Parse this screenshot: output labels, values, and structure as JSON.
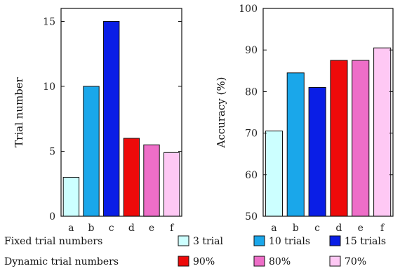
{
  "chart_data": [
    {
      "type": "bar",
      "categories": [
        "a",
        "b",
        "c",
        "d",
        "e",
        "f"
      ],
      "values": [
        3,
        10,
        15,
        6,
        5.5,
        4.9
      ],
      "colors": [
        "#ccffff",
        "#1aa7ea",
        "#0a1ee6",
        "#ee0a0a",
        "#ee6ec8",
        "#fec8f4"
      ],
      "title": "",
      "xlabel": "",
      "ylabel": "Trial number",
      "ylim": [
        0,
        16
      ],
      "yticks": [
        0,
        5,
        10,
        15
      ],
      "ytick_labels": [
        "0",
        "5",
        "10",
        "15"
      ],
      "grid": false
    },
    {
      "type": "bar",
      "categories": [
        "a",
        "b",
        "c",
        "d",
        "e",
        "f"
      ],
      "values": [
        70.5,
        84.5,
        81,
        87.5,
        87.5,
        90.5
      ],
      "colors": [
        "#ccffff",
        "#1aa7ea",
        "#0a1ee6",
        "#ee0a0a",
        "#ee6ec8",
        "#fec8f4"
      ],
      "title": "",
      "xlabel": "",
      "ylabel": "Accuracy (%)",
      "ylim": [
        50,
        100
      ],
      "yticks": [
        50,
        60,
        70,
        80,
        90,
        100
      ],
      "ytick_labels": [
        "50",
        "60",
        "70",
        "80",
        "90",
        "100"
      ],
      "grid": false
    }
  ],
  "legend": {
    "rows": [
      {
        "label": "Fixed trial numbers",
        "items": [
          {
            "label": "3 trial",
            "color": "#ccffff"
          },
          {
            "label": "10 trials",
            "color": "#1aa7ea"
          },
          {
            "label": "15 trials",
            "color": "#0a1ee6"
          }
        ]
      },
      {
        "label": "Dynamic trial numbers",
        "items": [
          {
            "label": "90%",
            "color": "#ee0a0a"
          },
          {
            "label": "80%",
            "color": "#ee6ec8"
          },
          {
            "label": "70%",
            "color": "#fec8f4"
          }
        ]
      }
    ]
  }
}
